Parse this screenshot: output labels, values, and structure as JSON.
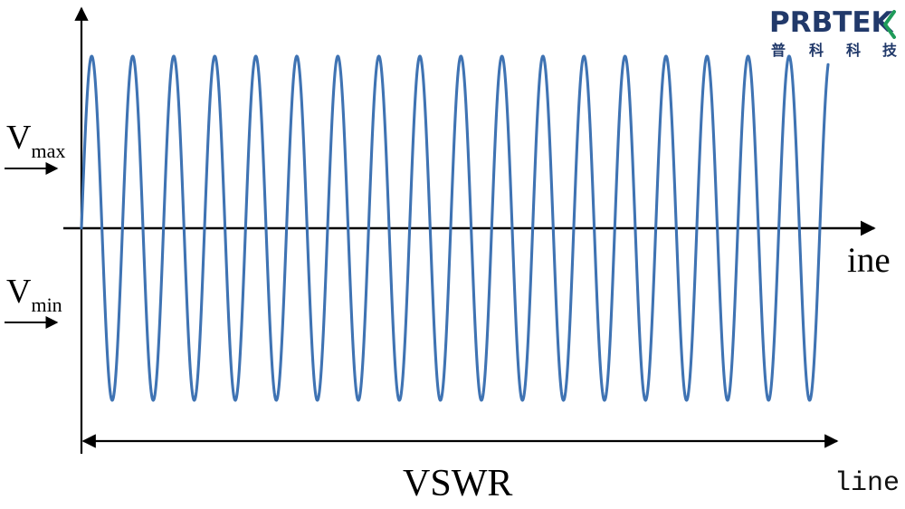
{
  "labels": {
    "vmax_main": "V",
    "vmax_sub": "max",
    "vmin_main": "V",
    "vmin_sub": "min",
    "x_axis_end": "ine",
    "span_label": "VSWR",
    "corner_label": "line"
  },
  "logo": {
    "text": "PRBTEK",
    "subtitle_chars": [
      "普",
      "科",
      "科",
      "技"
    ]
  },
  "wave": {
    "cycles": 18.2,
    "amplitude_ratio": 1.0
  },
  "colors": {
    "wave": "#3f73b3",
    "axis": "#000000",
    "logo_main": "#21396a",
    "logo_accent": "#1f9b59",
    "background": "#ffffff"
  }
}
